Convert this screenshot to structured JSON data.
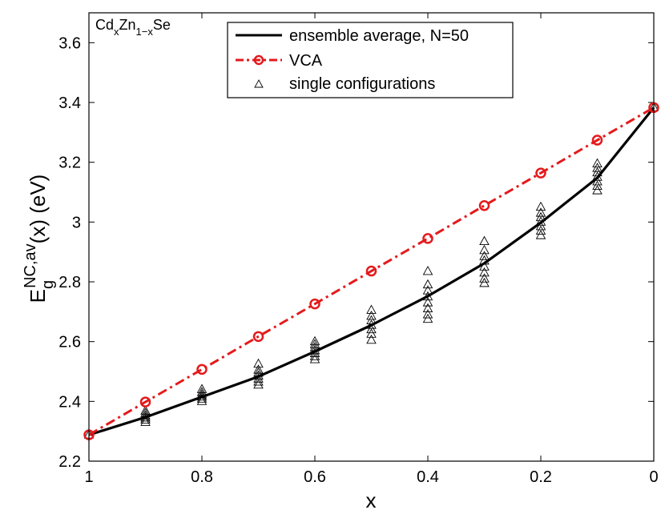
{
  "chart_data": {
    "type": "line",
    "xlabel": "x",
    "ylabel": {
      "base": "E",
      "sub": "g",
      "sup": "NC,av",
      "rest": "(x) (eV)"
    },
    "annotation": {
      "parts": [
        {
          "t": "Cd",
          "s": "n"
        },
        {
          "t": "x",
          "s": "sub"
        },
        {
          "t": "Zn",
          "s": "n"
        },
        {
          "t": "1−x",
          "s": "sub"
        },
        {
          "t": "Se",
          "s": "n"
        }
      ]
    },
    "xlim": [
      1,
      0
    ],
    "ylim": [
      2.2,
      3.7
    ],
    "x_reversed": true,
    "grid": false,
    "legend_position": "top-center",
    "xticks": [
      1,
      0.8,
      0.6,
      0.4,
      0.2,
      0
    ],
    "xtick_labels": [
      "1",
      "0.8",
      "0.6",
      "0.4",
      "0.2",
      "0"
    ],
    "yticks": [
      2.2,
      2.4,
      2.6,
      2.8,
      3.0,
      3.2,
      3.4,
      3.6
    ],
    "ytick_labels": [
      "2.2",
      "2.4",
      "2.6",
      "2.8",
      "3",
      "3.2",
      "3.4",
      "3.6"
    ],
    "series": [
      {
        "name": "ensemble average, N=50",
        "style": "line",
        "color": "#000000",
        "x": [
          1.0,
          0.9,
          0.8,
          0.7,
          0.6,
          0.5,
          0.4,
          0.3,
          0.2,
          0.1,
          0.0
        ],
        "y": [
          2.288,
          2.347,
          2.415,
          2.483,
          2.567,
          2.655,
          2.752,
          2.862,
          2.998,
          3.148,
          3.383
        ]
      },
      {
        "name": "VCA",
        "style": "dashdot-circle",
        "color": "#e41a1c",
        "x": [
          1.0,
          0.9,
          0.8,
          0.7,
          0.6,
          0.5,
          0.4,
          0.3,
          0.2,
          0.1,
          0.0
        ],
        "y": [
          2.288,
          2.398,
          2.507,
          2.617,
          2.726,
          2.836,
          2.945,
          3.055,
          3.164,
          3.274,
          3.383
        ]
      },
      {
        "name": "single configurations",
        "style": "triangle",
        "color": "#000000",
        "groups": [
          {
            "x": 1.0,
            "y": [
              2.288
            ]
          },
          {
            "x": 0.9,
            "y": [
              2.33,
              2.338,
              2.345,
              2.352,
              2.36,
              2.368
            ]
          },
          {
            "x": 0.8,
            "y": [
              2.4,
              2.408,
              2.415,
              2.422,
              2.43,
              2.44
            ]
          },
          {
            "x": 0.7,
            "y": [
              2.455,
              2.465,
              2.475,
              2.485,
              2.495,
              2.505,
              2.525
            ]
          },
          {
            "x": 0.6,
            "y": [
              2.54,
              2.55,
              2.56,
              2.57,
              2.58,
              2.59,
              2.6
            ]
          },
          {
            "x": 0.5,
            "y": [
              2.605,
              2.625,
              2.64,
              2.655,
              2.67,
              2.685,
              2.705
            ]
          },
          {
            "x": 0.4,
            "y": [
              2.675,
              2.69,
              2.71,
              2.73,
              2.75,
              2.77,
              2.79,
              2.835
            ]
          },
          {
            "x": 0.3,
            "y": [
              2.795,
              2.81,
              2.83,
              2.85,
              2.87,
              2.885,
              2.905,
              2.935
            ]
          },
          {
            "x": 0.2,
            "y": [
              2.955,
              2.97,
              2.985,
              3.0,
              3.015,
              3.03,
              3.05
            ]
          },
          {
            "x": 0.1,
            "y": [
              3.105,
              3.12,
              3.135,
              3.15,
              3.165,
              3.18,
              3.195
            ]
          },
          {
            "x": 0.0,
            "y": [
              3.383
            ]
          }
        ]
      }
    ]
  }
}
